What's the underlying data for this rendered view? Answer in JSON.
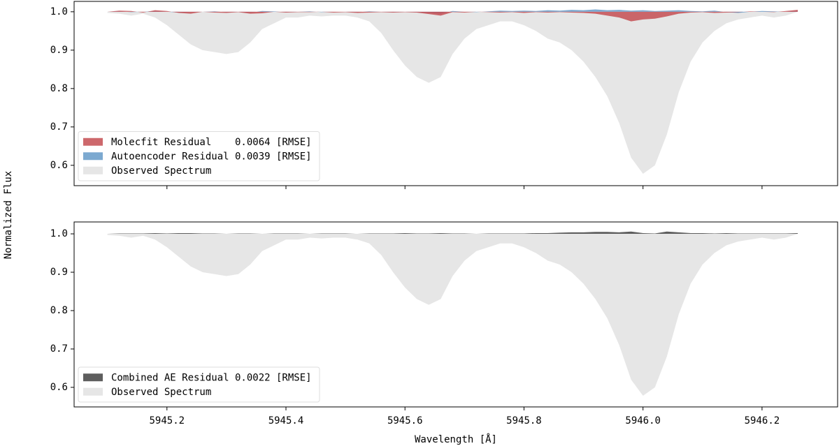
{
  "chart_data": [
    {
      "type": "area",
      "ylabel": "Normalized Flux",
      "legend": "lower left",
      "fill_to": 1.0,
      "xlim": [
        5945.044,
        5946.327
      ],
      "ylim": [
        0.547,
        1.027
      ],
      "yticks": [
        0.6,
        0.7,
        0.8,
        0.9,
        {
          "value": 1.0,
          "label": "1.0"
        }
      ],
      "x": [
        5945.1,
        5945.12,
        5945.14,
        5945.16,
        5945.18,
        5945.2,
        5945.22,
        5945.24,
        5945.26,
        5945.28,
        5945.3,
        5945.32,
        5945.34,
        5945.36,
        5945.38,
        5945.4,
        5945.42,
        5945.44,
        5945.46,
        5945.48,
        5945.5,
        5945.52,
        5945.54,
        5945.56,
        5945.58,
        5945.6,
        5945.62,
        5945.64,
        5945.66,
        5945.68,
        5945.7,
        5945.72,
        5945.74,
        5945.76,
        5945.78,
        5945.8,
        5945.82,
        5945.84,
        5945.86,
        5945.88,
        5945.9,
        5945.92,
        5945.94,
        5945.96,
        5945.98,
        5946.0,
        5946.02,
        5946.04,
        5946.06,
        5946.08,
        5946.1,
        5946.12,
        5946.14,
        5946.16,
        5946.18,
        5946.2,
        5946.22,
        5946.24,
        5946.26
      ],
      "series": [
        {
          "name": "Molecfit Residual    0.0064 [RMSE]",
          "color": "#c44e52",
          "opacity": 0.85,
          "values": [
            1.0,
            1.003,
            1.002,
            0.998,
            1.004,
            1.002,
            0.997,
            0.995,
            1.0,
            0.998,
            0.997,
            0.999,
            0.995,
            0.996,
            1.0,
            0.998,
            0.999,
            0.999,
            1.0,
            0.998,
            0.999,
            0.997,
            0.998,
            0.999,
            0.998,
            0.999,
            0.998,
            0.994,
            0.99,
            0.999,
            0.998,
            1.0,
            0.999,
            0.998,
            0.999,
            0.997,
            0.999,
            0.998,
            0.999,
            0.998,
            0.997,
            0.995,
            0.99,
            0.985,
            0.975,
            0.98,
            0.982,
            0.988,
            0.995,
            0.998,
            0.999,
            0.997,
            0.998,
            0.999,
            1.001,
            1.0,
            0.999,
            1.002,
            1.005
          ]
        },
        {
          "name": "Autoencoder Residual 0.0039 [RMSE]",
          "color": "#5b93c4",
          "opacity": 0.8,
          "values": [
            1.0,
            1.001,
            0.999,
            1.0,
            1.002,
            1.0,
            0.998,
            0.999,
            1.0,
            1.001,
            0.999,
            1.0,
            0.998,
            1.002,
            1.001,
            0.999,
            1.0,
            1.001,
            0.999,
            1.0,
            1.0,
            0.999,
            1.001,
            1.0,
            0.999,
            1.0,
            0.999,
            0.997,
            0.995,
            1.002,
            1.0,
            0.999,
            1.001,
            1.003,
            1.002,
            1.003,
            1.002,
            1.004,
            1.003,
            1.005,
            1.004,
            1.006,
            1.004,
            1.005,
            1.003,
            1.004,
            1.002,
            1.003,
            1.004,
            1.002,
            1.001,
            1.003,
            0.999,
            0.997,
            1.0,
            1.002,
            1.001,
            1.0,
            1.003
          ]
        },
        {
          "name": "Observed Spectrum",
          "color": "#e6e6e6",
          "opacity": 1,
          "values": [
            0.997,
            0.995,
            0.99,
            0.995,
            0.985,
            0.965,
            0.94,
            0.915,
            0.9,
            0.895,
            0.89,
            0.895,
            0.92,
            0.955,
            0.97,
            0.985,
            0.985,
            0.99,
            0.988,
            0.99,
            0.99,
            0.985,
            0.975,
            0.945,
            0.9,
            0.86,
            0.83,
            0.815,
            0.83,
            0.89,
            0.93,
            0.955,
            0.965,
            0.975,
            0.975,
            0.965,
            0.95,
            0.93,
            0.92,
            0.9,
            0.87,
            0.83,
            0.78,
            0.71,
            0.62,
            0.578,
            0.6,
            0.68,
            0.79,
            0.87,
            0.92,
            0.95,
            0.97,
            0.98,
            0.985,
            0.99,
            0.985,
            0.99,
            1.0
          ]
        }
      ]
    },
    {
      "type": "area",
      "xlabel": "Wavelength [Å]",
      "legend": "lower left",
      "fill_to": 1.0,
      "xlim": [
        5945.044,
        5946.327
      ],
      "ylim": [
        0.549,
        1.031
      ],
      "xticks": [
        5945.2,
        5945.4,
        5945.6,
        5945.8,
        {
          "value": 5946.0,
          "label": "5946.0"
        },
        5946.2
      ],
      "yticks": [
        0.6,
        0.7,
        0.8,
        0.9,
        {
          "value": 1.0,
          "label": "1.0"
        }
      ],
      "x": [
        5945.1,
        5945.12,
        5945.14,
        5945.16,
        5945.18,
        5945.2,
        5945.22,
        5945.24,
        5945.26,
        5945.28,
        5945.3,
        5945.32,
        5945.34,
        5945.36,
        5945.38,
        5945.4,
        5945.42,
        5945.44,
        5945.46,
        5945.48,
        5945.5,
        5945.52,
        5945.54,
        5945.56,
        5945.58,
        5945.6,
        5945.62,
        5945.64,
        5945.66,
        5945.68,
        5945.7,
        5945.72,
        5945.74,
        5945.76,
        5945.78,
        5945.8,
        5945.82,
        5945.84,
        5945.86,
        5945.88,
        5945.9,
        5945.92,
        5945.94,
        5945.96,
        5945.98,
        5946.0,
        5946.02,
        5946.04,
        5946.06,
        5946.08,
        5946.1,
        5946.12,
        5946.14,
        5946.16,
        5946.18,
        5946.2,
        5946.22,
        5946.24,
        5946.26
      ],
      "series": [
        {
          "name": "Combined AE Residual 0.0022 [RMSE]",
          "color": "#555555",
          "opacity": 0.95,
          "values": [
            1.0,
            1.001,
            1.001,
            1.001,
            1.002,
            1.001,
            1.002,
            1.002,
            1.001,
            1.001,
            1.0,
            1.001,
            1.001,
            1.0,
            1.001,
            1.001,
            1.001,
            1.0,
            1.001,
            1.001,
            1.001,
            1.0,
            1.001,
            1.001,
            1.001,
            1.002,
            1.001,
            1.001,
            1.002,
            1.001,
            1.001,
            1.0,
            1.001,
            1.001,
            1.001,
            1.001,
            1.002,
            1.002,
            1.003,
            1.004,
            1.004,
            1.005,
            1.005,
            1.004,
            1.006,
            1.002,
            1.001,
            1.006,
            1.004,
            1.002,
            1.002,
            1.001,
            1.002,
            1.001,
            1.001,
            1.001,
            1.001,
            1.001,
            1.002
          ]
        },
        {
          "name": "Observed Spectrum",
          "color": "#e6e6e6",
          "opacity": 1,
          "values": [
            0.997,
            0.995,
            0.99,
            0.995,
            0.985,
            0.965,
            0.94,
            0.915,
            0.9,
            0.895,
            0.89,
            0.895,
            0.92,
            0.955,
            0.97,
            0.985,
            0.985,
            0.99,
            0.988,
            0.99,
            0.99,
            0.985,
            0.975,
            0.945,
            0.9,
            0.86,
            0.83,
            0.815,
            0.83,
            0.89,
            0.93,
            0.955,
            0.965,
            0.975,
            0.975,
            0.965,
            0.95,
            0.93,
            0.92,
            0.9,
            0.87,
            0.83,
            0.78,
            0.71,
            0.62,
            0.578,
            0.6,
            0.68,
            0.79,
            0.87,
            0.92,
            0.95,
            0.97,
            0.98,
            0.985,
            0.99,
            0.985,
            0.99,
            1.0
          ]
        }
      ]
    }
  ]
}
